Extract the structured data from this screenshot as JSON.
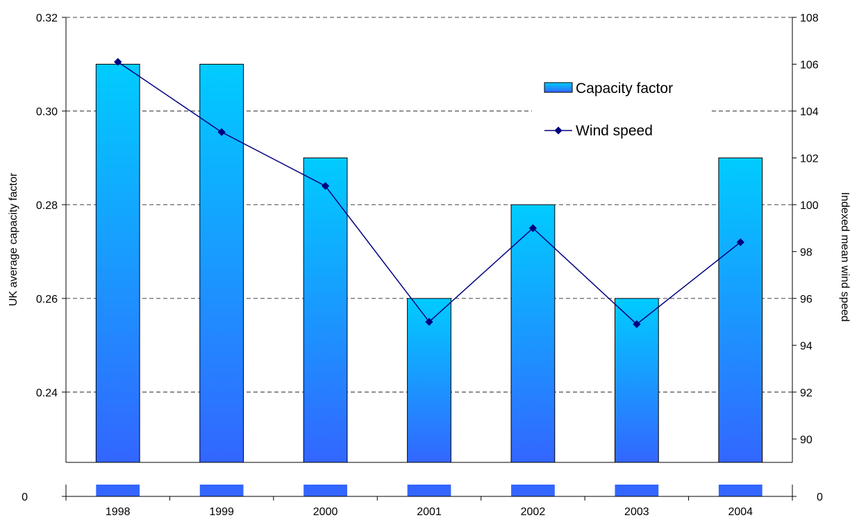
{
  "chart_data": {
    "type": "bar",
    "categories": [
      "1998",
      "1999",
      "2000",
      "2001",
      "2002",
      "2003",
      "2004"
    ],
    "series": [
      {
        "name": "Capacity factor",
        "type": "bar",
        "axis": "left",
        "values": [
          0.31,
          0.31,
          0.29,
          0.26,
          0.28,
          0.26,
          0.29
        ],
        "color_top": "#00ccff",
        "color_bottom": "#3366ff"
      },
      {
        "name": "Wind speed",
        "type": "line",
        "axis": "right",
        "values": [
          106.1,
          103.1,
          100.8,
          95.0,
          99.0,
          94.9,
          98.4
        ],
        "color": "#000080"
      }
    ],
    "ylabel_left": "UK average capacity factor",
    "ylabel_right": "Indexed mean wind speed",
    "y_left": {
      "lim": [
        0.225,
        0.32
      ],
      "ticks": [
        "0.32",
        "0.30",
        "0.28",
        "0.26",
        "0.24"
      ],
      "tick_values": [
        0.32,
        0.3,
        0.28,
        0.26,
        0.24
      ],
      "break_label": "0"
    },
    "y_right": {
      "lim": [
        89,
        108
      ],
      "ticks": [
        "108",
        "106",
        "104",
        "102",
        "100",
        "98",
        "96",
        "94",
        "92",
        "90"
      ],
      "tick_values": [
        108,
        106,
        104,
        102,
        100,
        98,
        96,
        94,
        92,
        90
      ],
      "break_label": "0"
    },
    "grid": "dashed-horizontal",
    "legend_position": "top-right",
    "axis_break": true
  }
}
